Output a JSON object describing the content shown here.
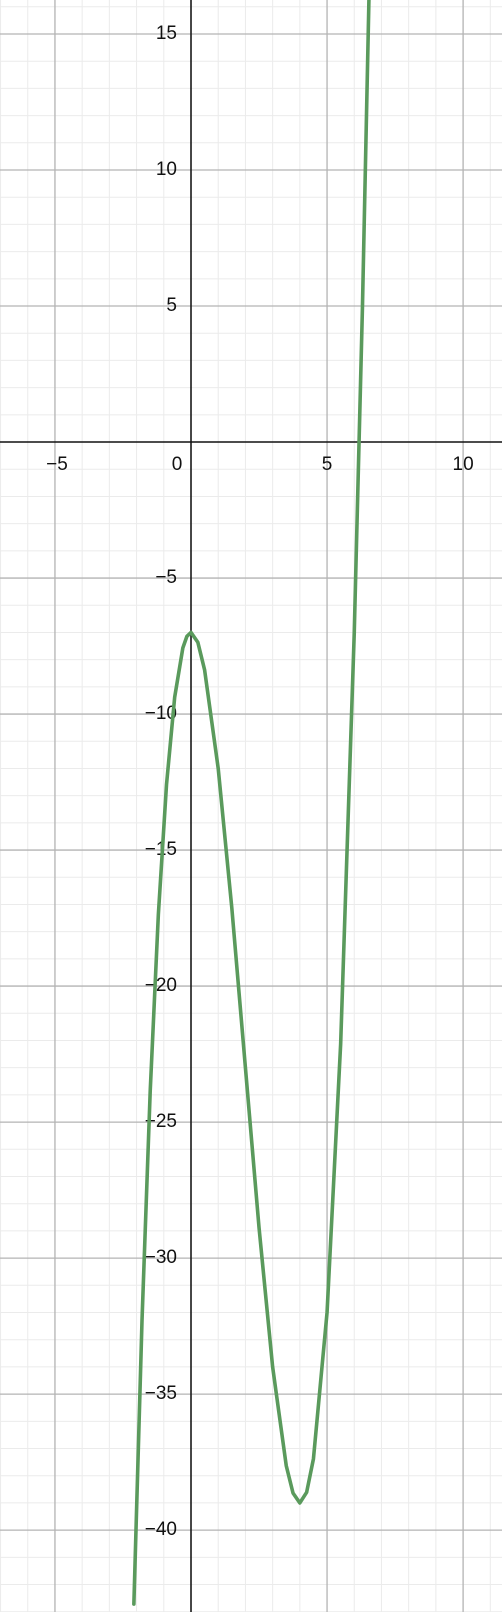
{
  "chart_data": {
    "type": "line",
    "x": [
      -2.1,
      -1.8,
      -1.5,
      -1.2,
      -0.9,
      -0.6,
      -0.3,
      -0.15,
      0,
      0.25,
      0.5,
      1,
      1.5,
      2,
      2.5,
      3,
      3.5,
      3.75,
      4,
      4.25,
      4.5,
      5,
      5.5,
      6,
      6.3,
      6.6
    ],
    "series": [
      {
        "color": "#5a9a5c",
        "values": [
          -42.72,
          -32.27,
          -23.88,
          -17.37,
          -12.59,
          -9.38,
          -7.57,
          -7.14,
          -7,
          -7.36,
          -8.38,
          -12,
          -17.13,
          -23,
          -28.88,
          -34,
          -37.63,
          -38.64,
          -39,
          -38.61,
          -37.38,
          -32,
          -22.13,
          -7,
          4.91,
          19.14
        ]
      }
    ],
    "xlim": [
      -7.02,
      11.43
    ],
    "ylim": [
      -43.01,
      16.25
    ],
    "xticks": [
      {
        "value": -5,
        "label": "−5"
      },
      0,
      5,
      10
    ],
    "yticks": [
      15,
      10,
      5,
      {
        "value": -5,
        "label": "−5"
      },
      {
        "value": -10,
        "label": "−10"
      },
      {
        "value": -15,
        "label": "−15"
      },
      {
        "value": -20,
        "label": "−20"
      },
      {
        "value": -25,
        "label": "−25"
      },
      {
        "value": -30,
        "label": "−30"
      },
      {
        "value": -35,
        "label": "−35"
      },
      {
        "value": -40,
        "label": "−40"
      }
    ],
    "grid": true,
    "minor_grid_step": 1
  }
}
